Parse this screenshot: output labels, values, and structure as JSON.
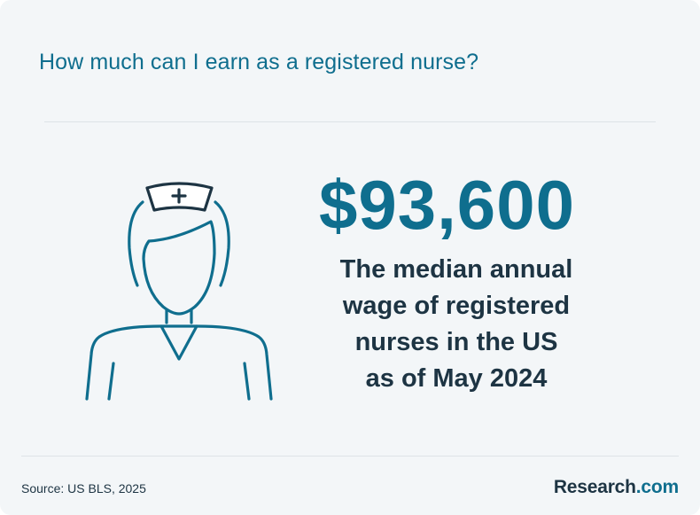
{
  "header": {
    "title": "How much can I earn as a registered nurse?"
  },
  "illustration": {
    "icon": "nurse-icon",
    "line_color": "#0f6e8e",
    "cap_color": "#1d3443"
  },
  "stat": {
    "value": "$93,600",
    "description_lines": [
      "The median annual",
      "wage of registered",
      "nurses in the US",
      "as of May 2024"
    ]
  },
  "footer": {
    "source": "Source: US BLS, 2025",
    "brand_name": "Research",
    "brand_suffix": ".com"
  },
  "colors": {
    "accent": "#0f6e8e",
    "dark_text": "#1d3443",
    "background": "#f3f6f8",
    "divider": "#dde3e7"
  }
}
